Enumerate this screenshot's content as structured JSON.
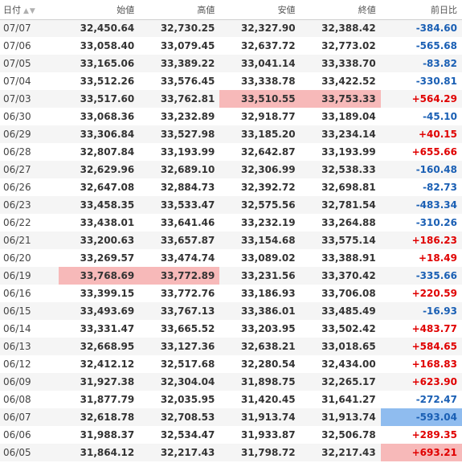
{
  "headers": {
    "date": "日付",
    "open": "始値",
    "high": "高値",
    "low": "安値",
    "close": "終値",
    "change": "前日比"
  },
  "colors": {
    "negative": "#1a5fb4",
    "positive": "#e00000",
    "highlight_red": "#f7b9b9",
    "highlight_blue": "#8fbcef"
  },
  "rows": [
    {
      "date": "07/07",
      "open": "32,450.64",
      "high": "32,730.25",
      "low": "32,327.90",
      "close": "32,388.42",
      "change": "-384.60"
    },
    {
      "date": "07/06",
      "open": "33,058.40",
      "high": "33,079.45",
      "low": "32,637.72",
      "close": "32,773.02",
      "change": "-565.68"
    },
    {
      "date": "07/05",
      "open": "33,165.06",
      "high": "33,389.22",
      "low": "33,041.14",
      "close": "33,338.70",
      "change": "-83.82"
    },
    {
      "date": "07/04",
      "open": "33,512.26",
      "high": "33,576.45",
      "low": "33,338.78",
      "close": "33,422.52",
      "change": "-330.81"
    },
    {
      "date": "07/03",
      "open": "33,517.60",
      "high": "33,762.81",
      "low": "33,510.55",
      "close": "33,753.33",
      "change": "+564.29"
    },
    {
      "date": "06/30",
      "open": "33,068.36",
      "high": "33,232.89",
      "low": "32,918.77",
      "close": "33,189.04",
      "change": "-45.10"
    },
    {
      "date": "06/29",
      "open": "33,306.84",
      "high": "33,527.98",
      "low": "33,185.20",
      "close": "33,234.14",
      "change": "+40.15"
    },
    {
      "date": "06/28",
      "open": "32,807.84",
      "high": "33,193.99",
      "low": "32,642.87",
      "close": "33,193.99",
      "change": "+655.66"
    },
    {
      "date": "06/27",
      "open": "32,629.96",
      "high": "32,689.10",
      "low": "32,306.99",
      "close": "32,538.33",
      "change": "-160.48"
    },
    {
      "date": "06/26",
      "open": "32,647.08",
      "high": "32,884.73",
      "low": "32,392.72",
      "close": "32,698.81",
      "change": "-82.73"
    },
    {
      "date": "06/23",
      "open": "33,458.35",
      "high": "33,533.47",
      "low": "32,575.56",
      "close": "32,781.54",
      "change": "-483.34"
    },
    {
      "date": "06/22",
      "open": "33,438.01",
      "high": "33,641.46",
      "low": "33,232.19",
      "close": "33,264.88",
      "change": "-310.26"
    },
    {
      "date": "06/21",
      "open": "33,200.63",
      "high": "33,657.87",
      "low": "33,154.68",
      "close": "33,575.14",
      "change": "+186.23"
    },
    {
      "date": "06/20",
      "open": "33,269.57",
      "high": "33,474.74",
      "low": "33,089.02",
      "close": "33,388.91",
      "change": "+18.49"
    },
    {
      "date": "06/19",
      "open": "33,768.69",
      "high": "33,772.89",
      "low": "33,231.56",
      "close": "33,370.42",
      "change": "-335.66"
    },
    {
      "date": "06/16",
      "open": "33,399.15",
      "high": "33,772.76",
      "low": "33,186.93",
      "close": "33,706.08",
      "change": "+220.59"
    },
    {
      "date": "06/15",
      "open": "33,493.69",
      "high": "33,767.13",
      "low": "33,386.01",
      "close": "33,485.49",
      "change": "-16.93"
    },
    {
      "date": "06/14",
      "open": "33,331.47",
      "high": "33,665.52",
      "low": "33,203.95",
      "close": "33,502.42",
      "change": "+483.77"
    },
    {
      "date": "06/13",
      "open": "32,668.95",
      "high": "33,127.36",
      "low": "32,638.21",
      "close": "33,018.65",
      "change": "+584.65"
    },
    {
      "date": "06/12",
      "open": "32,412.12",
      "high": "32,517.68",
      "low": "32,280.54",
      "close": "32,434.00",
      "change": "+168.83"
    },
    {
      "date": "06/09",
      "open": "31,927.38",
      "high": "32,304.04",
      "low": "31,898.75",
      "close": "32,265.17",
      "change": "+623.90"
    },
    {
      "date": "06/08",
      "open": "31,877.79",
      "high": "32,035.95",
      "low": "31,420.45",
      "close": "31,641.27",
      "change": "-272.47"
    },
    {
      "date": "06/07",
      "open": "32,618.78",
      "high": "32,708.53",
      "low": "31,913.74",
      "close": "31,913.74",
      "change": "-593.04"
    },
    {
      "date": "06/06",
      "open": "31,988.37",
      "high": "32,534.47",
      "low": "31,933.87",
      "close": "32,506.78",
      "change": "+289.35"
    },
    {
      "date": "06/05",
      "open": "31,864.12",
      "high": "32,217.43",
      "low": "31,798.72",
      "close": "32,217.43",
      "change": "+693.21"
    }
  ],
  "highlights": [
    {
      "row": 4,
      "col": "low",
      "color": "red"
    },
    {
      "row": 4,
      "col": "close",
      "color": "red"
    },
    {
      "row": 14,
      "col": "open",
      "color": "red"
    },
    {
      "row": 14,
      "col": "high",
      "color": "red"
    },
    {
      "row": 22,
      "col": "change",
      "color": "blue"
    },
    {
      "row": 24,
      "col": "change",
      "color": "red"
    }
  ]
}
